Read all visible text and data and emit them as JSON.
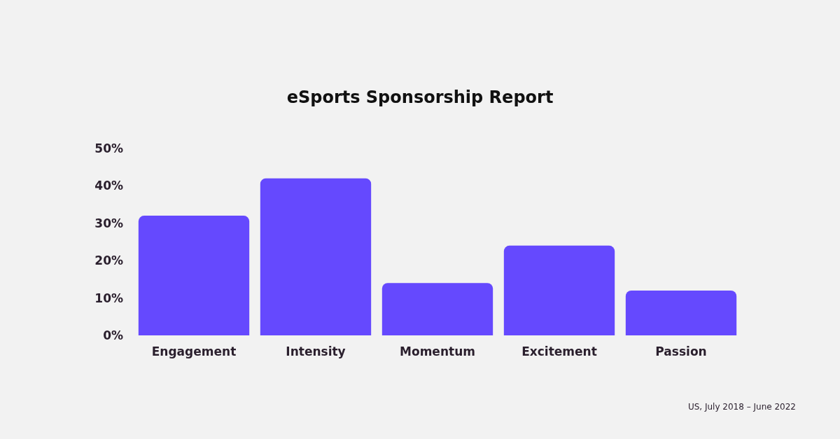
{
  "chart_data": {
    "type": "bar",
    "title": "eSports Sponsorship Report",
    "categories": [
      "Engagement",
      "Intensity",
      "Momentum",
      "Excitement",
      "Passion"
    ],
    "values": [
      32,
      42,
      14,
      24,
      12
    ],
    "color": "#6549fe",
    "ylim": [
      0,
      50
    ],
    "yticks": [
      {
        "value": 0,
        "label": "0%"
      },
      {
        "value": 10,
        "label": "10%"
      },
      {
        "value": 20,
        "label": "20%"
      },
      {
        "value": 30,
        "label": "30%"
      },
      {
        "value": 40,
        "label": "40%"
      },
      {
        "value": 50,
        "label": "50%"
      }
    ],
    "grid": false,
    "annotations": [
      "US, July 2018 – June 2022"
    ]
  }
}
